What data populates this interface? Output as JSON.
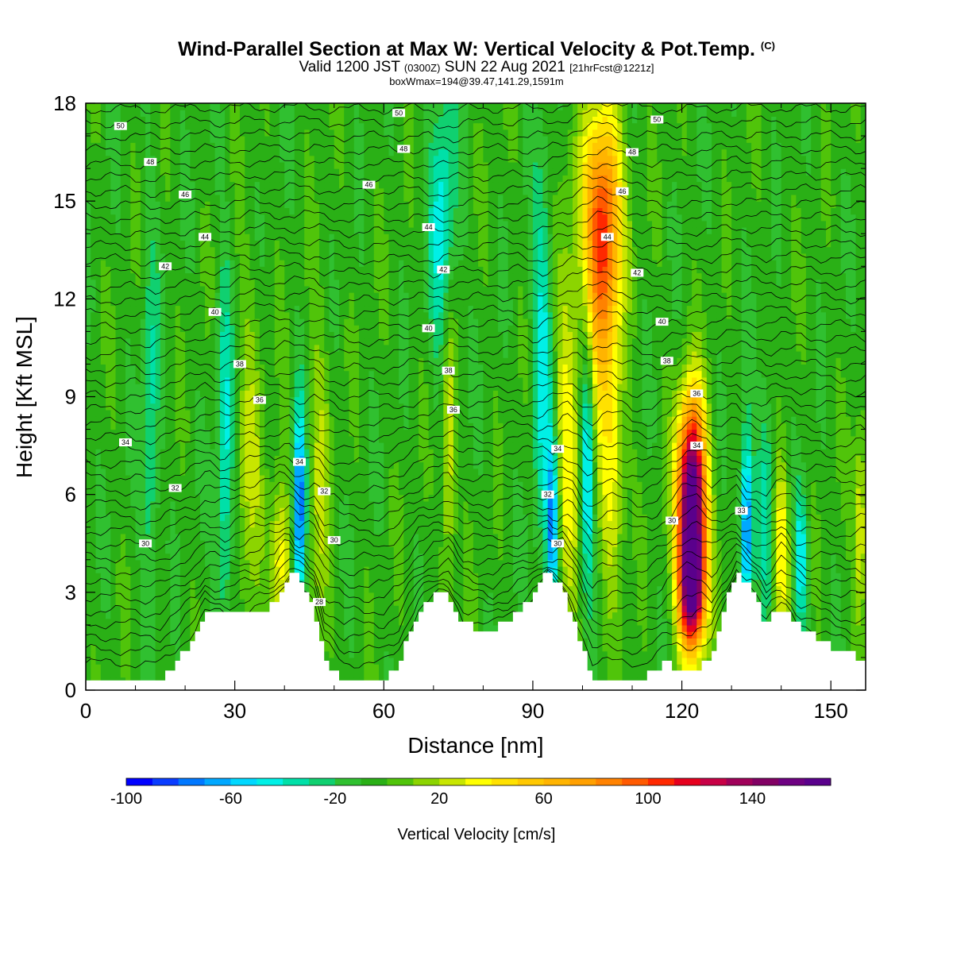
{
  "title": {
    "main": "Wind-Parallel Section at Max W: Vertical Velocity & Pot.Temp.",
    "copyright": "(C)",
    "valid_prefix": "Valid 1200 JST",
    "valid_utc": "(0300Z)",
    "valid_date": "SUN 22 Aug 2021",
    "forecast": "[21hrFcst@1221z]",
    "box": "boxWmax=194@39.47,141.29,1591m"
  },
  "colors": {
    "background_field": "#33bb1e",
    "terrain": "#ffffff",
    "contour": "#000000",
    "colorbar": [
      "#0000ff",
      "#0a3cff",
      "#0078ff",
      "#00a8ff",
      "#00d8ff",
      "#00f0e6",
      "#00e0a8",
      "#10d070",
      "#30c030",
      "#2ab016",
      "#50c40a",
      "#8cd400",
      "#c8e600",
      "#ffff00",
      "#ffe100",
      "#ffc800",
      "#ffb400",
      "#ffa000",
      "#ff8200",
      "#ff5a00",
      "#ff2800",
      "#e6001e",
      "#c80046",
      "#a0005a",
      "#820064",
      "#6e0082",
      "#5a008c"
    ]
  },
  "chart_data": {
    "type": "heatmap",
    "xlabel": "Distance [nm]",
    "ylabel": "Height [Kft MSL]",
    "xlim": [
      0,
      157
    ],
    "ylim": [
      0,
      18
    ],
    "x_ticks": [
      0,
      30,
      60,
      90,
      120,
      150
    ],
    "y_ticks": [
      0,
      3,
      6,
      9,
      12,
      15,
      18
    ],
    "colorbar": {
      "label": "Vertical Velocity [cm/s]",
      "min": -100,
      "max": 170,
      "step": 10,
      "tick_labels": [
        -100,
        -60,
        -20,
        20,
        60,
        100,
        140
      ]
    },
    "background_w": -5,
    "w_features": [
      {
        "x": 43,
        "y": 5.5,
        "w": -80,
        "sx": 0.9,
        "sy": 2.2
      },
      {
        "x": 39,
        "y": 4.0,
        "w": 45,
        "sx": 1.5,
        "sy": 1.8
      },
      {
        "x": 33,
        "y": 6.5,
        "w": 25,
        "sx": 2.0,
        "sy": 4.0
      },
      {
        "x": 47,
        "y": 6.0,
        "w": 25,
        "sx": 1.5,
        "sy": 4.0
      },
      {
        "x": 13,
        "y": 8.0,
        "w": -30,
        "sx": 1.2,
        "sy": 4.0
      },
      {
        "x": 28,
        "y": 7.0,
        "w": -40,
        "sx": 1.2,
        "sy": 4.0
      },
      {
        "x": 73,
        "y": 8.0,
        "w": 40,
        "sx": 1.0,
        "sy": 3.5
      },
      {
        "x": 72,
        "y": 14.0,
        "w": -45,
        "sx": 1.8,
        "sy": 3.0
      },
      {
        "x": 92,
        "y": 10.0,
        "w": -40,
        "sx": 1.5,
        "sy": 4.0
      },
      {
        "x": 94,
        "y": 5.0,
        "w": -70,
        "sx": 0.8,
        "sy": 1.8
      },
      {
        "x": 97,
        "y": 8.0,
        "w": 40,
        "sx": 1.8,
        "sy": 4.0
      },
      {
        "x": 101,
        "y": 7.0,
        "w": -55,
        "sx": 0.9,
        "sy": 2.5
      },
      {
        "x": 104,
        "y": 15.0,
        "w": 80,
        "sx": 2.8,
        "sy": 2.2
      },
      {
        "x": 104,
        "y": 12.0,
        "w": 65,
        "sx": 2.2,
        "sy": 2.5
      },
      {
        "x": 106,
        "y": 6.5,
        "w": 40,
        "sx": 1.8,
        "sy": 2.5
      },
      {
        "x": 122,
        "y": 4.8,
        "w": 190,
        "sx": 2.0,
        "sy": 2.2
      },
      {
        "x": 122,
        "y": 7.5,
        "w": 50,
        "sx": 2.0,
        "sy": 1.6
      },
      {
        "x": 122,
        "y": 2.8,
        "w": 70,
        "sx": 1.8,
        "sy": 1.0
      },
      {
        "x": 133,
        "y": 5.0,
        "w": -75,
        "sx": 0.9,
        "sy": 2.0
      },
      {
        "x": 140,
        "y": 4.5,
        "w": 45,
        "sx": 1.2,
        "sy": 2.0
      },
      {
        "x": 144,
        "y": 4.0,
        "w": -45,
        "sx": 1.0,
        "sy": 1.5
      },
      {
        "x": 137,
        "y": 6.0,
        "w": -30,
        "sx": 1.2,
        "sy": 2.5
      },
      {
        "x": 156,
        "y": 5.0,
        "w": 40,
        "sx": 1.0,
        "sy": 2.0
      }
    ],
    "terrain": [
      [
        0,
        0.3
      ],
      [
        15,
        0.3
      ],
      [
        18,
        0.8
      ],
      [
        22,
        1.6
      ],
      [
        24,
        2.3
      ],
      [
        28,
        2.3
      ],
      [
        32,
        2.3
      ],
      [
        38,
        2.6
      ],
      [
        41,
        3.6
      ],
      [
        44,
        3.3
      ],
      [
        46,
        2.6
      ],
      [
        48,
        1.0
      ],
      [
        52,
        0.3
      ],
      [
        60,
        0.3
      ],
      [
        63,
        0.8
      ],
      [
        67,
        2.4
      ],
      [
        70,
        2.9
      ],
      [
        73,
        3.0
      ],
      [
        76,
        2.0
      ],
      [
        82,
        1.8
      ],
      [
        88,
        2.5
      ],
      [
        91,
        3.0
      ],
      [
        93,
        3.6
      ],
      [
        96,
        3.1
      ],
      [
        98,
        2.3
      ],
      [
        100,
        1.4
      ],
      [
        102,
        0.3
      ],
      [
        112,
        0.3
      ],
      [
        117,
        0.8
      ],
      [
        122,
        0.5
      ],
      [
        126,
        1.0
      ],
      [
        128,
        2.2
      ],
      [
        131,
        3.6
      ],
      [
        134,
        3.1
      ],
      [
        137,
        2.0
      ],
      [
        140,
        2.5
      ],
      [
        143,
        2.0
      ],
      [
        148,
        1.5
      ],
      [
        152,
        1.2
      ],
      [
        156,
        1.0
      ],
      [
        157,
        1.0
      ]
    ],
    "theta_labels": [
      {
        "x": 7,
        "y": 17.3,
        "text": "50"
      },
      {
        "x": 63,
        "y": 17.7,
        "text": "50"
      },
      {
        "x": 115,
        "y": 17.5,
        "text": "50"
      },
      {
        "x": 13,
        "y": 16.2,
        "text": "48"
      },
      {
        "x": 64,
        "y": 16.6,
        "text": "48"
      },
      {
        "x": 110,
        "y": 16.5,
        "text": "48"
      },
      {
        "x": 20,
        "y": 15.2,
        "text": "46"
      },
      {
        "x": 57,
        "y": 15.5,
        "text": "46"
      },
      {
        "x": 108,
        "y": 15.3,
        "text": "46"
      },
      {
        "x": 24,
        "y": 13.9,
        "text": "44"
      },
      {
        "x": 69,
        "y": 14.2,
        "text": "44"
      },
      {
        "x": 105,
        "y": 13.9,
        "text": "44"
      },
      {
        "x": 16,
        "y": 13.0,
        "text": "42"
      },
      {
        "x": 72,
        "y": 12.9,
        "text": "42"
      },
      {
        "x": 111,
        "y": 12.8,
        "text": "42"
      },
      {
        "x": 26,
        "y": 11.6,
        "text": "40"
      },
      {
        "x": 69,
        "y": 11.1,
        "text": "40"
      },
      {
        "x": 116,
        "y": 11.3,
        "text": "40"
      },
      {
        "x": 31,
        "y": 10.0,
        "text": "38"
      },
      {
        "x": 73,
        "y": 9.8,
        "text": "38"
      },
      {
        "x": 117,
        "y": 10.1,
        "text": "38"
      },
      {
        "x": 35,
        "y": 8.9,
        "text": "36"
      },
      {
        "x": 74,
        "y": 8.6,
        "text": "36"
      },
      {
        "x": 123,
        "y": 9.1,
        "text": "36"
      },
      {
        "x": 8,
        "y": 7.6,
        "text": "34"
      },
      {
        "x": 43,
        "y": 7.0,
        "text": "34"
      },
      {
        "x": 95,
        "y": 7.4,
        "text": "34"
      },
      {
        "x": 123,
        "y": 7.5,
        "text": "34"
      },
      {
        "x": 18,
        "y": 6.2,
        "text": "32"
      },
      {
        "x": 48,
        "y": 6.1,
        "text": "32"
      },
      {
        "x": 93,
        "y": 6.0,
        "text": "32"
      },
      {
        "x": 132,
        "y": 5.5,
        "text": "33"
      },
      {
        "x": 12,
        "y": 4.5,
        "text": "30"
      },
      {
        "x": 50,
        "y": 4.6,
        "text": "30"
      },
      {
        "x": 95,
        "y": 4.5,
        "text": "30"
      },
      {
        "x": 118,
        "y": 5.2,
        "text": "30"
      },
      {
        "x": 47,
        "y": 2.7,
        "text": "28"
      }
    ]
  }
}
